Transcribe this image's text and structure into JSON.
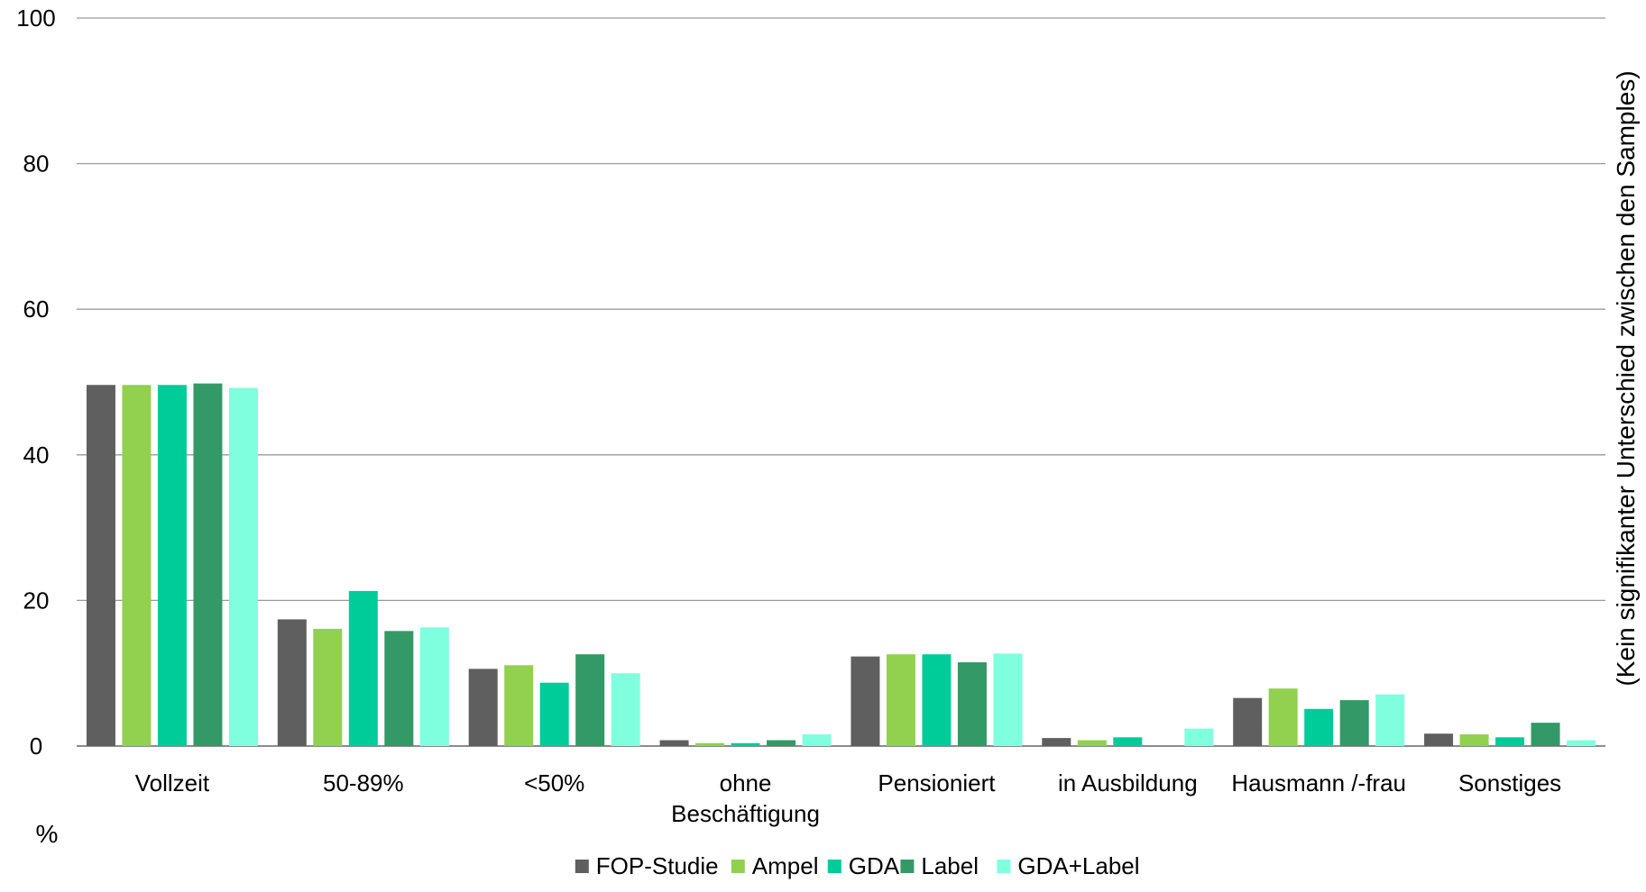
{
  "chart_data": {
    "type": "bar",
    "title": "",
    "xlabel": "",
    "ylabel": "%",
    "right_label": "(Kein signifikanter Unterschied zwischen den Samples)",
    "ylim": [
      0,
      100
    ],
    "yticks": [
      0,
      20,
      40,
      60,
      80,
      100
    ],
    "grid": true,
    "legend_position": "bottom",
    "categories": [
      [
        "Vollzeit"
      ],
      [
        "50-89%"
      ],
      [
        "<50%"
      ],
      [
        "ohne",
        "Beschäftigung"
      ],
      [
        "Pensioniert"
      ],
      [
        "in Ausbildung"
      ],
      [
        "Hausmann /-frau"
      ],
      [
        "Sonstiges"
      ]
    ],
    "series": [
      {
        "name": "FOP-Studie",
        "color": "#5f5f5f",
        "values": [
          49.6,
          17.4,
          10.6,
          0.8,
          12.3,
          1.1,
          6.6,
          1.7
        ]
      },
      {
        "name": "Ampel",
        "color": "#92d050",
        "values": [
          49.6,
          16.1,
          11.1,
          0.4,
          12.6,
          0.8,
          7.9,
          1.6
        ]
      },
      {
        "name": "GDA",
        "color": "#00cc99",
        "values": [
          49.6,
          21.3,
          8.7,
          0.4,
          12.6,
          1.2,
          5.1,
          1.2
        ]
      },
      {
        "name": "Label",
        "color": "#339966",
        "values": [
          49.8,
          15.8,
          12.6,
          0.8,
          11.5,
          0.0,
          6.3,
          3.2
        ]
      },
      {
        "name": "GDA+Label",
        "color": "#80ffdf",
        "values": [
          49.2,
          16.3,
          10.0,
          1.6,
          12.7,
          2.4,
          7.1,
          0.8
        ]
      }
    ]
  }
}
